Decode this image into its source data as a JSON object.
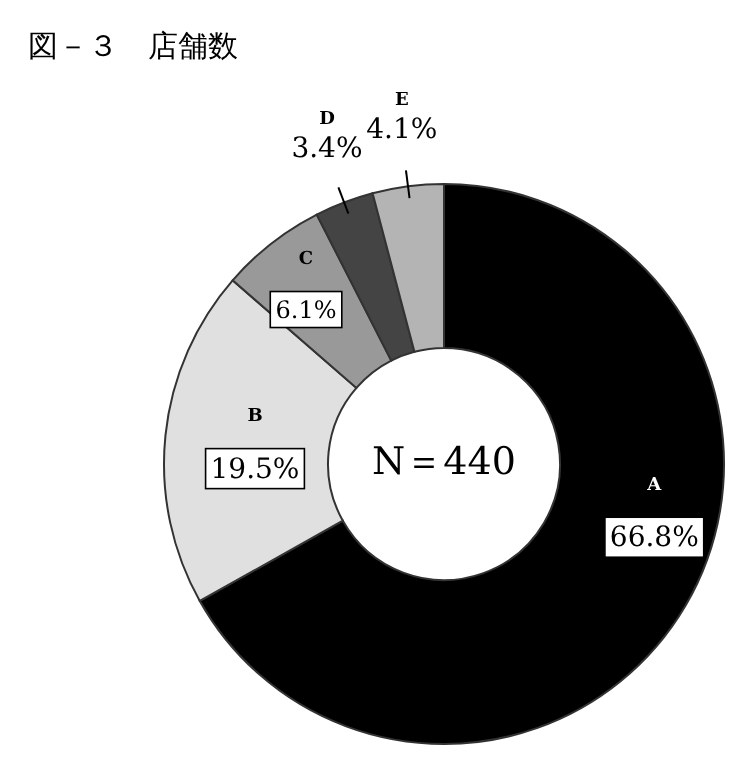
{
  "chart_data": {
    "type": "donut",
    "title": "図－３　店舗数",
    "categories": [
      "A",
      "B",
      "C",
      "D",
      "E"
    ],
    "values": [
      66.8,
      19.5,
      6.1,
      3.4,
      4.1
    ],
    "value_labels": [
      "66.8%",
      "19.5%",
      "6.1%",
      "3.4%",
      "4.1%"
    ],
    "colors": [
      "#000000",
      "#e0e0e0",
      "#999999",
      "#444444",
      "#b4b4b4"
    ],
    "annotations": [
      "N＝440"
    ]
  }
}
